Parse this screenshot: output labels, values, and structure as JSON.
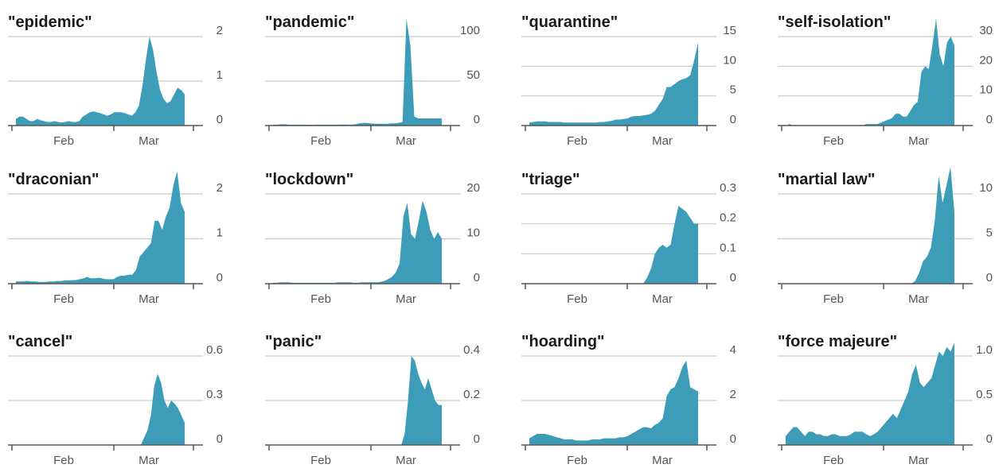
{
  "colors": {
    "area": "#3d9db8",
    "grid": "#c9c9c9",
    "text": "#1b1b1b",
    "axis": "#555555"
  },
  "chart_data": [
    {
      "type": "area",
      "title": "\"epidemic\"",
      "xlabel": "",
      "ylabel": "",
      "x_tick_labels": [
        "Feb",
        "Mar"
      ],
      "y_ticks": [
        "0",
        "1",
        "2"
      ],
      "ylim": [
        0,
        2
      ],
      "y_values": [
        0.15,
        0.2,
        0.2,
        0.15,
        0.1,
        0.1,
        0.15,
        0.12,
        0.1,
        0.08,
        0.08,
        0.1,
        0.08,
        0.07,
        0.08,
        0.1,
        0.08,
        0.08,
        0.1,
        0.2,
        0.25,
        0.3,
        0.32,
        0.3,
        0.28,
        0.25,
        0.22,
        0.25,
        0.3,
        0.3,
        0.3,
        0.28,
        0.25,
        0.22,
        0.3,
        0.45,
        0.9,
        1.5,
        2.0,
        1.7,
        1.2,
        0.8,
        0.6,
        0.5,
        0.55,
        0.7,
        0.85,
        0.8,
        0.7
      ]
    },
    {
      "type": "area",
      "title": "\"pandemic\"",
      "xlabel": "",
      "ylabel": "",
      "x_tick_labels": [
        "Feb",
        "Mar"
      ],
      "y_ticks": [
        "0",
        "50",
        "100"
      ],
      "ylim": [
        0,
        100
      ],
      "y_values": [
        1,
        1,
        1.5,
        1.5,
        1,
        1,
        1,
        1,
        1,
        0.8,
        0.8,
        1,
        1,
        1,
        1,
        1,
        1,
        1,
        1.2,
        1,
        1,
        1.5,
        2.5,
        3,
        3,
        2.5,
        2,
        2,
        2,
        2,
        2.5,
        2.5,
        3,
        4,
        120,
        90,
        10,
        8,
        8,
        8,
        8,
        8,
        8,
        8
      ]
    },
    {
      "type": "area",
      "title": "\"quarantine\"",
      "xlabel": "",
      "ylabel": "",
      "x_tick_labels": [
        "Feb",
        "Mar"
      ],
      "y_ticks": [
        "0",
        "5",
        "10",
        "15"
      ],
      "ylim": [
        0,
        15
      ],
      "y_values": [
        0.5,
        0.6,
        0.7,
        0.7,
        0.7,
        0.6,
        0.6,
        0.6,
        0.6,
        0.5,
        0.5,
        0.5,
        0.5,
        0.5,
        0.5,
        0.5,
        0.5,
        0.5,
        0.6,
        0.6,
        0.7,
        0.8,
        1.0,
        1.0,
        1.1,
        1.2,
        1.5,
        1.6,
        1.6,
        1.7,
        1.8,
        2.0,
        2.5,
        3.5,
        4.5,
        6.5,
        6.5,
        7.0,
        7.5,
        7.8,
        8.0,
        8.5,
        11.0,
        14.0
      ]
    },
    {
      "type": "area",
      "title": "\"self-isolation\"",
      "xlabel": "",
      "ylabel": "",
      "x_tick_labels": [
        "Feb",
        "Mar"
      ],
      "y_ticks": [
        "0",
        "10",
        "20",
        "30"
      ],
      "ylim": [
        0,
        30
      ],
      "y_values": [
        0,
        0.5,
        0,
        0,
        0,
        0,
        0,
        0,
        0,
        0,
        0,
        0,
        0,
        0,
        0,
        0,
        0,
        0,
        0,
        0,
        0,
        0,
        0.5,
        0.5,
        0.5,
        0.5,
        1,
        1.5,
        2,
        2.5,
        4,
        4,
        3,
        3,
        5,
        7,
        8,
        18,
        20,
        19,
        27,
        36,
        24,
        20,
        28,
        30,
        27
      ]
    },
    {
      "type": "area",
      "title": "\"draconian\"",
      "xlabel": "",
      "ylabel": "",
      "x_tick_labels": [
        "Feb",
        "Mar"
      ],
      "y_ticks": [
        "0",
        "1",
        "2"
      ],
      "ylim": [
        0,
        2
      ],
      "y_values": [
        0.05,
        0.05,
        0.05,
        0.06,
        0.05,
        0.05,
        0.04,
        0.04,
        0.04,
        0.05,
        0.05,
        0.06,
        0.06,
        0.07,
        0.07,
        0.08,
        0.08,
        0.1,
        0.12,
        0.15,
        0.12,
        0.12,
        0.13,
        0.12,
        0.1,
        0.1,
        0.1,
        0.15,
        0.18,
        0.18,
        0.2,
        0.2,
        0.3,
        0.6,
        0.7,
        0.8,
        0.9,
        1.4,
        1.4,
        1.2,
        1.5,
        1.7,
        2.2,
        2.5,
        1.8,
        1.6
      ]
    },
    {
      "type": "area",
      "title": "\"lockdown\"",
      "xlabel": "",
      "ylabel": "",
      "x_tick_labels": [
        "Feb",
        "Mar"
      ],
      "y_ticks": [
        "0",
        "10",
        "20"
      ],
      "ylim": [
        0,
        20
      ],
      "y_values": [
        0.2,
        0.2,
        0.3,
        0.3,
        0.3,
        0.2,
        0.2,
        0.2,
        0.2,
        0.2,
        0.2,
        0.2,
        0.2,
        0.2,
        0.2,
        0.2,
        0.2,
        0.3,
        0.3,
        0.3,
        0.3,
        0.2,
        0.2,
        0.3,
        0.3,
        0.3,
        0.3,
        0.3,
        0.4,
        0.6,
        1.0,
        1.5,
        2.5,
        4.5,
        15,
        18,
        11,
        10,
        14,
        18.5,
        16,
        12,
        10,
        11.5,
        10
      ]
    },
    {
      "type": "area",
      "title": "\"triage\"",
      "xlabel": "",
      "ylabel": "",
      "x_tick_labels": [
        "Feb",
        "Mar"
      ],
      "y_ticks": [
        "0",
        "0.1",
        "0.2",
        "0.3"
      ],
      "ylim": [
        0,
        0.3
      ],
      "y_values": [
        0,
        0,
        0,
        0,
        0,
        0,
        0,
        0,
        0,
        0,
        0,
        0,
        0,
        0,
        0,
        0,
        0,
        0,
        0,
        0,
        0,
        0,
        0,
        0,
        0,
        0,
        0,
        0,
        0,
        0,
        0.02,
        0.05,
        0.1,
        0.12,
        0.13,
        0.12,
        0.13,
        0.2,
        0.26,
        0.25,
        0.24,
        0.22,
        0.2,
        0.2
      ]
    },
    {
      "type": "area",
      "title": "\"martial law\"",
      "xlabel": "",
      "ylabel": "",
      "x_tick_labels": [
        "Feb",
        "Mar"
      ],
      "y_ticks": [
        "0",
        "5",
        "10"
      ],
      "ylim": [
        0,
        10
      ],
      "y_values": [
        0,
        0,
        0,
        0,
        0,
        0,
        0,
        0,
        0,
        0,
        0,
        0,
        0,
        0,
        0,
        0,
        0,
        0,
        0,
        0,
        0,
        0,
        0,
        0,
        0,
        0,
        0,
        0,
        0,
        0,
        0,
        0,
        0,
        0.3,
        1.2,
        2.5,
        3,
        4,
        7,
        12,
        9,
        11,
        13,
        8
      ]
    },
    {
      "type": "area",
      "title": "\"cancel\"",
      "xlabel": "",
      "ylabel": "",
      "x_tick_labels": [
        "Feb",
        "Mar"
      ],
      "y_ticks": [
        "0",
        "0.3",
        "0.6"
      ],
      "ylim": [
        0,
        0.6
      ],
      "y_values": [
        0,
        0,
        0,
        0,
        0,
        0,
        0,
        0,
        0,
        0,
        0,
        0,
        0,
        0,
        0,
        0,
        0,
        0,
        0,
        0,
        0,
        0,
        0,
        0,
        0,
        0,
        0,
        0,
        0,
        0,
        0,
        0,
        0,
        0,
        0,
        0,
        0,
        0,
        0.05,
        0.1,
        0.2,
        0.4,
        0.48,
        0.42,
        0.3,
        0.25,
        0.3,
        0.28,
        0.25,
        0.2,
        0.15
      ]
    },
    {
      "type": "area",
      "title": "\"panic\"",
      "xlabel": "",
      "ylabel": "",
      "x_tick_labels": [
        "Feb",
        "Mar"
      ],
      "y_ticks": [
        "0",
        "0.2",
        "0.4"
      ],
      "ylim": [
        0,
        0.4
      ],
      "y_values": [
        0,
        0,
        0,
        0,
        0,
        0,
        0,
        0,
        0,
        0,
        0,
        0,
        0,
        0,
        0,
        0,
        0,
        0,
        0,
        0,
        0,
        0,
        0,
        0,
        0,
        0,
        0,
        0,
        0,
        0,
        0,
        0,
        0,
        0,
        0,
        0,
        0,
        0,
        0,
        0.05,
        0.2,
        0.4,
        0.38,
        0.32,
        0.28,
        0.25,
        0.3,
        0.25,
        0.2,
        0.18,
        0.18
      ]
    },
    {
      "type": "area",
      "title": "\"hoarding\"",
      "xlabel": "",
      "ylabel": "",
      "x_tick_labels": [
        "Feb",
        "Mar"
      ],
      "y_ticks": [
        "0",
        "2",
        "4"
      ],
      "ylim": [
        0,
        4
      ],
      "y_values": [
        0.3,
        0.4,
        0.5,
        0.5,
        0.5,
        0.45,
        0.4,
        0.35,
        0.3,
        0.25,
        0.25,
        0.25,
        0.2,
        0.2,
        0.2,
        0.2,
        0.25,
        0.25,
        0.25,
        0.3,
        0.3,
        0.3,
        0.3,
        0.35,
        0.35,
        0.4,
        0.5,
        0.6,
        0.7,
        0.8,
        0.8,
        0.75,
        0.9,
        1.0,
        1.2,
        2.2,
        2.5,
        2.6,
        3.0,
        3.5,
        3.8,
        2.6,
        2.5,
        2.4
      ]
    },
    {
      "type": "area",
      "title": "\"force majeure\"",
      "xlabel": "",
      "ylabel": "",
      "x_tick_labels": [
        "Feb",
        "Mar"
      ],
      "y_ticks": [
        "0",
        "0.5",
        "1.0"
      ],
      "ylim": [
        0,
        1.0
      ],
      "y_values": [
        0.1,
        0.15,
        0.2,
        0.2,
        0.15,
        0.1,
        0.15,
        0.15,
        0.12,
        0.12,
        0.1,
        0.1,
        0.12,
        0.12,
        0.1,
        0.1,
        0.1,
        0.12,
        0.15,
        0.15,
        0.15,
        0.12,
        0.1,
        0.12,
        0.15,
        0.2,
        0.25,
        0.3,
        0.35,
        0.3,
        0.4,
        0.5,
        0.6,
        0.8,
        0.9,
        0.7,
        0.65,
        0.7,
        0.75,
        0.9,
        1.05,
        1.0,
        1.1,
        1.05,
        1.15
      ]
    }
  ]
}
